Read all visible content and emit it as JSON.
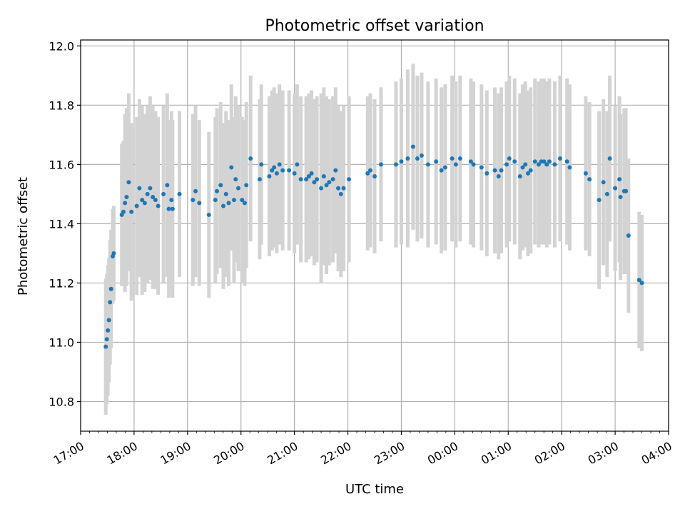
{
  "chart_data": {
    "type": "scatter",
    "title": "Photometric offset variation",
    "xlabel": "UTC time",
    "ylabel": "Photometric offset",
    "xlim": [
      17.0,
      28.0
    ],
    "ylim": [
      10.7,
      12.02
    ],
    "grid": true,
    "xticks": [
      {
        "value": 17,
        "label": "17:00"
      },
      {
        "value": 18,
        "label": "18:00"
      },
      {
        "value": 19,
        "label": "19:00"
      },
      {
        "value": 20,
        "label": "20:00"
      },
      {
        "value": 21,
        "label": "21:00"
      },
      {
        "value": 22,
        "label": "22:00"
      },
      {
        "value": 23,
        "label": "23:00"
      },
      {
        "value": 24,
        "label": "00:00"
      },
      {
        "value": 25,
        "label": "01:00"
      },
      {
        "value": 26,
        "label": "02:00"
      },
      {
        "value": 27,
        "label": "03:00"
      },
      {
        "value": 28,
        "label": "04:00"
      }
    ],
    "yticks": [
      {
        "value": 10.8,
        "label": "10.8"
      },
      {
        "value": 11.0,
        "label": "11.0"
      },
      {
        "value": 11.2,
        "label": "11.2"
      },
      {
        "value": 11.4,
        "label": "11.4"
      },
      {
        "value": 11.6,
        "label": "11.6"
      },
      {
        "value": 11.8,
        "label": "11.8"
      },
      {
        "value": 12.0,
        "label": "12.0"
      }
    ],
    "colors": {
      "point": "#1f77b4",
      "errorbar": "#d3d3d3",
      "grid": "#b0b0b0",
      "axis": "#000000"
    },
    "series": [
      {
        "name": "offset",
        "x": [
          17.47,
          17.49,
          17.51,
          17.53,
          17.55,
          17.57,
          17.6,
          17.62,
          17.77,
          17.8,
          17.83,
          17.86,
          17.9,
          17.95,
          18.05,
          18.1,
          18.15,
          18.2,
          18.25,
          18.3,
          18.35,
          18.4,
          18.45,
          18.55,
          18.62,
          18.65,
          18.7,
          18.72,
          18.85,
          19.1,
          19.15,
          19.22,
          19.4,
          19.52,
          19.55,
          19.62,
          19.67,
          19.72,
          19.77,
          19.82,
          19.87,
          19.9,
          19.95,
          20.02,
          20.07,
          20.1,
          20.18,
          20.35,
          20.38,
          20.53,
          20.58,
          20.62,
          20.67,
          20.72,
          20.78,
          20.9,
          21.0,
          21.05,
          21.12,
          21.22,
          21.27,
          21.32,
          21.37,
          21.42,
          21.5,
          21.55,
          21.6,
          21.65,
          21.72,
          21.77,
          21.82,
          21.87,
          21.92,
          22.02,
          22.37,
          22.42,
          22.5,
          22.62,
          22.9,
          23.0,
          23.12,
          23.22,
          23.3,
          23.38,
          23.5,
          23.65,
          23.75,
          23.82,
          23.95,
          24.02,
          24.1,
          24.3,
          24.35,
          24.5,
          24.6,
          24.75,
          24.82,
          24.87,
          24.97,
          25.02,
          25.12,
          25.22,
          25.27,
          25.32,
          25.37,
          25.42,
          25.5,
          25.57,
          25.62,
          25.67,
          25.72,
          25.77,
          25.87,
          25.97,
          26.1,
          26.15,
          26.45,
          26.52,
          26.7,
          26.78,
          26.85,
          26.9,
          27.0,
          27.08,
          27.1,
          27.17,
          27.2,
          27.25,
          27.45,
          27.5
        ],
        "y": [
          10.985,
          11.01,
          11.04,
          11.075,
          11.135,
          11.18,
          11.29,
          11.3,
          11.43,
          11.44,
          11.47,
          11.49,
          11.54,
          11.44,
          11.46,
          11.52,
          11.48,
          11.47,
          11.5,
          11.52,
          11.49,
          11.48,
          11.46,
          11.5,
          11.53,
          11.45,
          11.48,
          11.45,
          11.5,
          11.48,
          11.51,
          11.47,
          11.43,
          11.48,
          11.51,
          11.53,
          11.46,
          11.5,
          11.47,
          11.59,
          11.48,
          11.55,
          11.52,
          11.48,
          11.47,
          11.53,
          11.62,
          11.55,
          11.6,
          11.56,
          11.58,
          11.59,
          11.57,
          11.6,
          11.58,
          11.58,
          11.57,
          11.6,
          11.55,
          11.55,
          11.56,
          11.57,
          11.54,
          11.55,
          11.52,
          11.56,
          11.53,
          11.54,
          11.55,
          11.58,
          11.52,
          11.5,
          11.52,
          11.55,
          11.57,
          11.58,
          11.56,
          11.6,
          11.6,
          11.61,
          11.62,
          11.66,
          11.62,
          11.63,
          11.6,
          11.61,
          11.58,
          11.59,
          11.62,
          11.6,
          11.62,
          11.61,
          11.6,
          11.59,
          11.57,
          11.58,
          11.56,
          11.58,
          11.6,
          11.62,
          11.61,
          11.56,
          11.59,
          11.6,
          11.57,
          11.58,
          11.61,
          11.6,
          11.61,
          11.61,
          11.6,
          11.61,
          11.6,
          11.62,
          11.61,
          11.59,
          11.57,
          11.55,
          11.48,
          11.54,
          11.5,
          11.62,
          11.52,
          11.55,
          11.49,
          11.51,
          11.51,
          11.36,
          11.21,
          11.2
        ],
        "yerr": [
          0.23,
          0.22,
          0.22,
          0.21,
          0.21,
          0.2,
          0.16,
          0.16,
          0.24,
          0.24,
          0.3,
          0.3,
          0.3,
          0.3,
          0.3,
          0.3,
          0.32,
          0.3,
          0.3,
          0.31,
          0.31,
          0.3,
          0.3,
          0.3,
          0.31,
          0.3,
          0.3,
          0.3,
          0.28,
          0.29,
          0.29,
          0.28,
          0.28,
          0.28,
          0.28,
          0.28,
          0.28,
          0.28,
          0.28,
          0.28,
          0.28,
          0.28,
          0.28,
          0.28,
          0.28,
          0.28,
          0.28,
          0.27,
          0.27,
          0.27,
          0.27,
          0.27,
          0.27,
          0.27,
          0.27,
          0.27,
          0.27,
          0.27,
          0.28,
          0.28,
          0.28,
          0.28,
          0.28,
          0.28,
          0.32,
          0.3,
          0.3,
          0.28,
          0.28,
          0.28,
          0.28,
          0.28,
          0.28,
          0.28,
          0.26,
          0.26,
          0.26,
          0.26,
          0.28,
          0.28,
          0.3,
          0.28,
          0.28,
          0.28,
          0.28,
          0.28,
          0.28,
          0.28,
          0.28,
          0.28,
          0.28,
          0.28,
          0.28,
          0.28,
          0.28,
          0.28,
          0.28,
          0.28,
          0.28,
          0.28,
          0.28,
          0.28,
          0.28,
          0.28,
          0.28,
          0.28,
          0.28,
          0.28,
          0.28,
          0.28,
          0.28,
          0.28,
          0.28,
          0.28,
          0.28,
          0.28,
          0.26,
          0.26,
          0.3,
          0.28,
          0.28,
          0.28,
          0.28,
          0.28,
          0.28,
          0.28,
          0.28,
          0.26,
          0.23,
          0.23
        ]
      }
    ]
  }
}
